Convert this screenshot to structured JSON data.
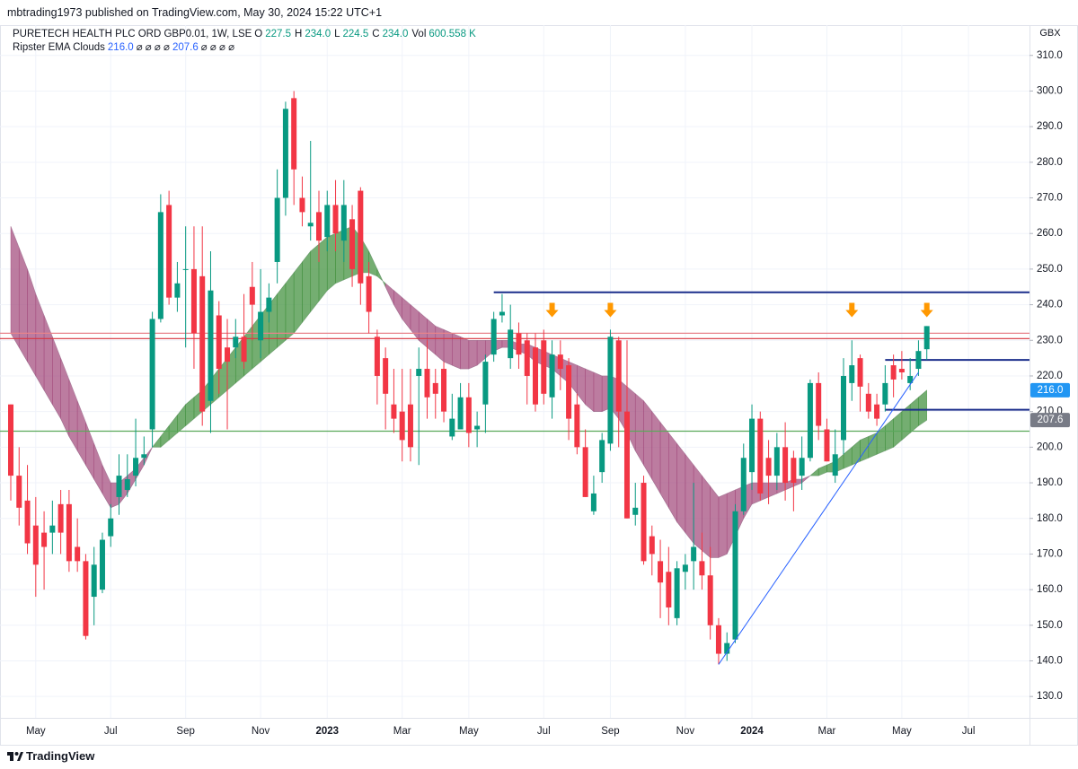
{
  "header": {
    "publisher": "mbtrading1973 published on TradingView.com, May 30, 2024 15:22 UTC+1",
    "symbol": "PURETECH HEALTH PLC ORD GBP0.01, 1W, LSE",
    "ohlc_legend": [
      {
        "key": "O",
        "value": "227.5"
      },
      {
        "key": "H",
        "value": "234.0"
      },
      {
        "key": "L",
        "value": "224.5"
      },
      {
        "key": "C",
        "value": "234.0"
      },
      {
        "key": "Vol",
        "value": "600.558 K"
      }
    ],
    "indicator": "Ripster EMA Clouds",
    "indicator_values": [
      "216.0",
      "⌀ ⌀ ⌀ ⌀",
      "207.6",
      "⌀ ⌀ ⌀ ⌀"
    ],
    "currency": "GBX",
    "footer": "TradingView"
  },
  "chart_data": {
    "type": "candlestick",
    "categories": [
      null,
      null,
      null,
      "May",
      null,
      null,
      null,
      null,
      null,
      null,
      null,
      null,
      "Jul",
      null,
      null,
      null,
      null,
      null,
      null,
      null,
      null,
      "Sep",
      null,
      null,
      null,
      null,
      null,
      null,
      null,
      null,
      "Nov",
      null,
      null,
      null,
      null,
      null,
      null,
      null,
      "2023",
      null,
      null,
      null,
      null,
      null,
      null,
      null,
      null,
      "Mar",
      null,
      null,
      null,
      null,
      null,
      null,
      null,
      "May",
      null,
      null,
      null,
      null,
      null,
      null,
      null,
      null,
      "Jul",
      null,
      null,
      null,
      null,
      null,
      null,
      null,
      "Sep",
      null,
      null,
      null,
      null,
      null,
      null,
      null,
      null,
      "Nov",
      null,
      null,
      null,
      null,
      null,
      null,
      null,
      "2024",
      null,
      null,
      null,
      null,
      null,
      null,
      null,
      null,
      "Mar",
      null,
      null,
      null,
      null,
      null,
      null,
      null,
      null,
      "May",
      null,
      null,
      null,
      null,
      null,
      null,
      null,
      "Jul"
    ],
    "open": [
      212,
      192,
      185,
      178,
      176,
      176,
      184,
      184,
      172,
      168,
      158,
      160,
      175,
      186,
      188,
      192,
      197,
      205,
      236,
      268,
      242,
      250,
      250,
      248,
      213,
      237,
      228,
      228,
      231,
      245,
      230,
      238,
      252,
      270,
      298,
      270,
      262,
      266,
      259,
      268,
      258,
      264,
      272,
      248,
      231,
      225,
      212,
      210,
      212,
      220,
      222,
      218,
      222,
      203,
      205,
      214,
      205,
      212,
      226,
      237,
      225,
      232,
      230,
      228,
      230,
      214,
      226,
      223,
      212,
      200,
      182,
      193,
      201,
      230,
      210,
      181,
      190,
      175,
      168,
      165,
      152,
      165,
      168,
      168,
      164,
      150,
      142,
      146,
      182,
      193,
      208,
      197,
      192,
      200,
      197,
      192,
      197,
      218,
      205,
      192,
      202,
      218,
      225,
      215,
      212,
      212,
      223,
      222,
      218,
      222,
      227.5,
      null,
      null,
      null,
      null,
      null
    ],
    "high": [
      212,
      200,
      195,
      186,
      182,
      185,
      188,
      188,
      180,
      170,
      172,
      176,
      184,
      198,
      198,
      208,
      203,
      238,
      271,
      272,
      252,
      262,
      262,
      262,
      255,
      241,
      236,
      236,
      243,
      252,
      250,
      246,
      278,
      297,
      300,
      276,
      286,
      272,
      272,
      275,
      275,
      268,
      273,
      252,
      233,
      228,
      222,
      222,
      222,
      228,
      230,
      222,
      224,
      215,
      218,
      218,
      210,
      226,
      238,
      243,
      240,
      235,
      232,
      232,
      233,
      230,
      230,
      225,
      215,
      205,
      192,
      204,
      233,
      231,
      230,
      190,
      192,
      178,
      174,
      172,
      168,
      170,
      190,
      176,
      172,
      152,
      148,
      184,
      201,
      212,
      210,
      202,
      204,
      207,
      199,
      203,
      219,
      221,
      208,
      205,
      225,
      230,
      226,
      218,
      215,
      223,
      226,
      227,
      225,
      230,
      234,
      null,
      null,
      null,
      null,
      null
    ],
    "low": [
      185,
      178,
      170,
      158,
      160,
      170,
      170,
      165,
      165,
      146,
      150,
      159,
      172,
      181,
      186,
      189,
      195,
      200,
      235,
      240,
      238,
      228,
      222,
      206,
      204,
      215,
      205,
      225,
      222,
      230,
      225,
      235,
      246,
      265,
      268,
      262,
      258,
      252,
      255,
      255,
      252,
      245,
      240,
      232,
      212,
      205,
      204,
      196,
      196,
      195,
      208,
      208,
      207,
      202,
      205,
      200,
      200,
      204,
      224,
      235,
      222,
      222,
      212,
      210,
      212,
      208,
      216,
      202,
      198,
      186,
      181,
      190,
      199,
      200,
      180,
      178,
      167,
      164,
      152,
      150,
      150,
      160,
      160,
      160,
      146,
      139,
      140,
      145,
      181,
      188,
      185,
      184,
      188,
      185,
      182,
      188,
      196,
      202,
      196,
      190,
      198,
      213,
      210,
      208,
      206,
      210,
      214,
      219,
      216,
      220,
      224.5,
      null,
      null,
      null,
      null,
      null
    ],
    "close": [
      192,
      183,
      173,
      167,
      172,
      178,
      176,
      168,
      168,
      147,
      167,
      174,
      180,
      192,
      191,
      197,
      198,
      236,
      266,
      242,
      246,
      250,
      232,
      210,
      244,
      222,
      224,
      231,
      224,
      240,
      238,
      242,
      270,
      295,
      278,
      266,
      263,
      258,
      268,
      260,
      268,
      250,
      246,
      238,
      220,
      215,
      208,
      202,
      200,
      222,
      214,
      215,
      210,
      208,
      214,
      204,
      206,
      224,
      236,
      238,
      233,
      226,
      220,
      212,
      215,
      226,
      222,
      208,
      200,
      186,
      187,
      202,
      231,
      210,
      180,
      183,
      168,
      170,
      162,
      155,
      166,
      167,
      172,
      164,
      150,
      142,
      145,
      182,
      197,
      208,
      187,
      192,
      200,
      190,
      190,
      197,
      218,
      206,
      196,
      198,
      220,
      223,
      217,
      210,
      208,
      218,
      219,
      221,
      220,
      227,
      234,
      null,
      null,
      null,
      null,
      null
    ],
    "up_color": "#089981",
    "down_color": "#f23645",
    "cloud_colors": {
      "up": "#3f8f3a",
      "down": "#a24a7c"
    },
    "series": [
      {
        "values": [
          232,
          228,
          224,
          220,
          216,
          212,
          208,
          203,
          199,
          195,
          191,
          187,
          183,
          184,
          187,
          191,
          195,
          200,
          203,
          206,
          209,
          212,
          214,
          216,
          219,
          222,
          225,
          228,
          231,
          234,
          237,
          240,
          243,
          246,
          249,
          252,
          255,
          257,
          259,
          260,
          261,
          262,
          259,
          255,
          250,
          245,
          240,
          236,
          233,
          230,
          228,
          226,
          224,
          223,
          222,
          222,
          223,
          225,
          227,
          228,
          228,
          227,
          226,
          224,
          223,
          222,
          220,
          218,
          215,
          212,
          210,
          210,
          211,
          208,
          204,
          199,
          195,
          191,
          187,
          183,
          179,
          176,
          173,
          171,
          169,
          169,
          170,
          175,
          180,
          184,
          185,
          186,
          187,
          188,
          189,
          190,
          192,
          194,
          195,
          196,
          198,
          200,
          202,
          203,
          204,
          206,
          208,
          210,
          212,
          214,
          216,
          null,
          null,
          null,
          null,
          null
        ],
        "last_label": "216.0",
        "label_color": "#2196f3"
      },
      {
        "values": [
          262,
          256,
          250,
          243,
          237,
          231,
          225,
          219,
          213,
          207,
          201,
          195,
          190,
          190,
          192,
          194,
          197,
          200,
          200,
          202,
          204,
          206,
          208,
          210,
          212,
          214,
          216,
          218,
          220,
          222,
          224,
          226,
          228,
          230,
          232,
          235,
          238,
          241,
          244,
          246,
          247,
          248,
          249,
          249,
          248,
          246,
          244,
          242,
          240,
          238,
          236,
          234,
          233,
          232,
          231,
          230,
          230,
          230,
          230,
          230,
          230,
          229,
          229,
          228,
          227,
          226,
          225,
          224,
          223,
          222,
          221,
          220,
          220,
          219,
          217,
          215,
          213,
          210,
          207,
          204,
          201,
          198,
          195,
          192,
          189,
          186,
          187,
          188,
          189,
          190,
          190,
          190,
          190,
          190,
          191,
          191,
          192,
          192,
          193,
          193,
          194,
          195,
          196,
          197,
          198,
          199,
          200,
          202,
          204,
          206,
          207.6,
          null,
          null,
          null,
          null,
          null
        ],
        "last_label": "207.6",
        "label_color": "#787b86"
      }
    ],
    "hlines": [
      {
        "value": 243.5,
        "color": "#1c2f8c",
        "start": 58
      },
      {
        "value": 232,
        "color": "#e8828a"
      },
      {
        "value": 230.5,
        "color": "#d8343f"
      },
      {
        "value": 204.5,
        "color": "#5aa85a"
      },
      {
        "value": 224.5,
        "color": "#1c2f8c",
        "start": 105
      },
      {
        "value": 210.5,
        "color": "#1c2f8c",
        "start": 105
      }
    ],
    "trendline": {
      "from": [
        85,
        139
      ],
      "to": [
        109,
        221
      ],
      "color": "#2962ff"
    },
    "arrows": {
      "color": "#ff9800",
      "points": [
        {
          "index": 65,
          "value": 236.5
        },
        {
          "index": 72,
          "value": 236.5
        },
        {
          "index": 101,
          "value": 236.5
        },
        {
          "index": 110,
          "value": 236.5
        }
      ]
    },
    "ylim": [
      124,
      318
    ],
    "yticks": [
      {
        "value": 130,
        "label": "130.0"
      },
      {
        "value": 140,
        "label": "140.0"
      },
      {
        "value": 150,
        "label": "150.0"
      },
      {
        "value": 160,
        "label": "160.0"
      },
      {
        "value": 170,
        "label": "170.0"
      },
      {
        "value": 180,
        "label": "180.0"
      },
      {
        "value": 190,
        "label": "190.0"
      },
      {
        "value": 200,
        "label": "200.0"
      },
      {
        "value": 210,
        "label": "210.0"
      },
      {
        "value": 220,
        "label": "220.0"
      },
      {
        "value": 230,
        "label": "230.0"
      },
      {
        "value": 240,
        "label": "240.0"
      },
      {
        "value": 250,
        "label": "250.0"
      },
      {
        "value": 260,
        "label": "260.0"
      },
      {
        "value": 270,
        "label": "270.0"
      },
      {
        "value": 280,
        "label": "280.0"
      },
      {
        "value": 290,
        "label": "290.0"
      },
      {
        "value": 300,
        "label": "300.0"
      },
      {
        "value": 310,
        "label": "310.0"
      }
    ],
    "grid": true
  }
}
